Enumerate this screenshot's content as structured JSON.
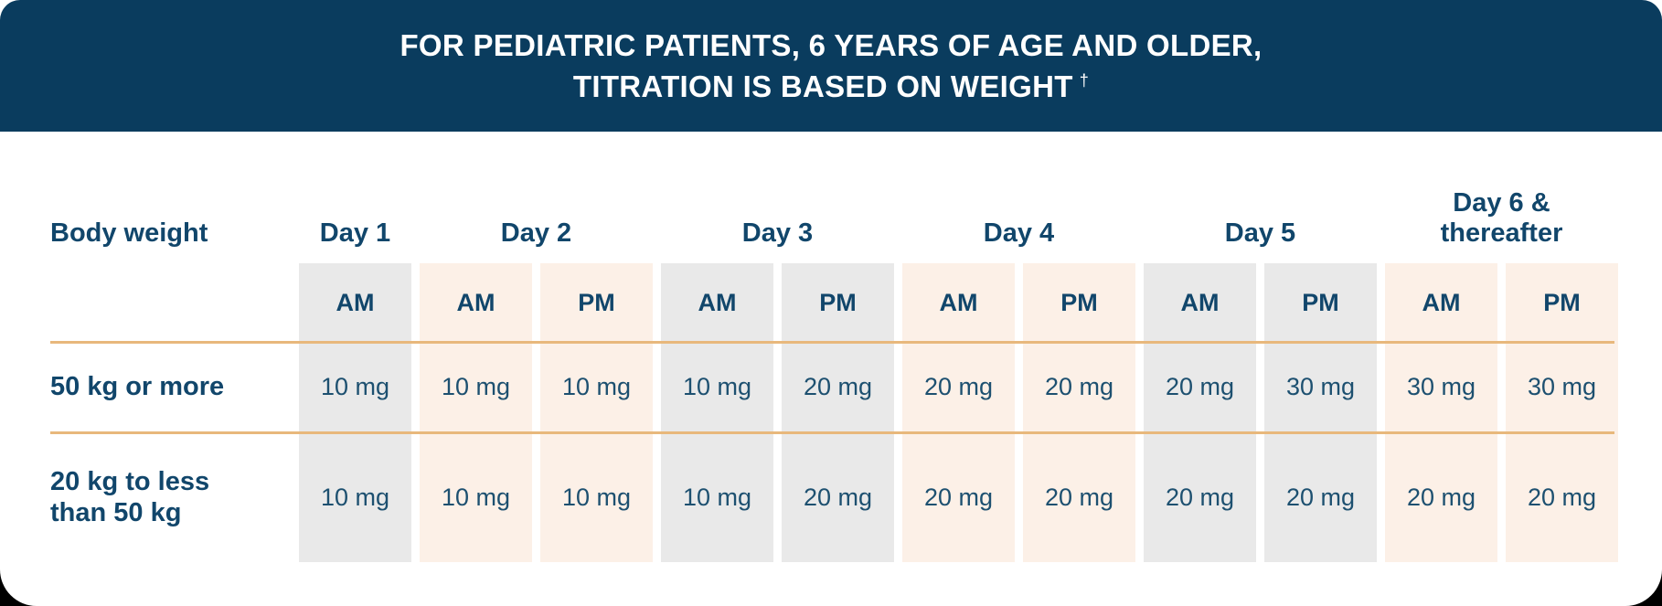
{
  "banner": {
    "title_line1": "FOR PEDIATRIC PATIENTS, 6 YEARS OF AGE AND OLDER,",
    "title_line2": "TITRATION IS BASED ON WEIGHT",
    "dagger_symbol": "†"
  },
  "table": {
    "corner_label": "Body weight",
    "day_headers": [
      {
        "label": "Day 1",
        "span": 1
      },
      {
        "label": "Day 2",
        "span": 2
      },
      {
        "label": "Day 3",
        "span": 2
      },
      {
        "label": "Day 4",
        "span": 2
      },
      {
        "label": "Day 5",
        "span": 2
      },
      {
        "label": "Day 6 &\nthereafter",
        "span": 2
      }
    ],
    "period_headers": [
      "AM",
      "AM",
      "PM",
      "AM",
      "PM",
      "AM",
      "PM",
      "AM",
      "PM",
      "AM",
      "PM"
    ],
    "column_pattern": [
      "gray",
      "peach",
      "peach",
      "gray",
      "gray",
      "peach",
      "peach",
      "gray",
      "gray",
      "peach",
      "peach"
    ],
    "rows": [
      {
        "label": "50 kg or more",
        "values": [
          "10 mg",
          "10 mg",
          "10 mg",
          "10 mg",
          "20 mg",
          "20 mg",
          "20 mg",
          "20 mg",
          "30 mg",
          "30 mg",
          "30 mg"
        ]
      },
      {
        "label": "20 kg to less\nthan 50 kg",
        "values": [
          "10 mg",
          "10 mg",
          "10 mg",
          "10 mg",
          "20 mg",
          "20 mg",
          "20 mg",
          "20 mg",
          "20 mg",
          "20 mg",
          "20 mg"
        ]
      }
    ]
  },
  "chart_data": {
    "type": "table",
    "title": "FOR PEDIATRIC PATIENTS, 6 YEARS OF AGE AND OLDER, TITRATION IS BASED ON WEIGHT †",
    "columns": [
      "Body weight",
      "Day 1 AM",
      "Day 2 AM",
      "Day 2 PM",
      "Day 3 AM",
      "Day 3 PM",
      "Day 4 AM",
      "Day 4 PM",
      "Day 5 AM",
      "Day 5 PM",
      "Day 6 & thereafter AM",
      "Day 6 & thereafter PM"
    ],
    "rows": [
      [
        "50 kg or more",
        "10 mg",
        "10 mg",
        "10 mg",
        "10 mg",
        "20 mg",
        "20 mg",
        "20 mg",
        "20 mg",
        "30 mg",
        "30 mg",
        "30 mg"
      ],
      [
        "20 kg to less than 50 kg",
        "10 mg",
        "10 mg",
        "10 mg",
        "10 mg",
        "20 mg",
        "20 mg",
        "20 mg",
        "20 mg",
        "20 mg",
        "20 mg",
        "20 mg"
      ]
    ]
  },
  "colors": {
    "banner_bg": "#0a3c5e",
    "banner_text": "#ffffff",
    "heading_text": "#11466b",
    "value_text": "#1d5070",
    "column_gray": "#e9e9e9",
    "column_peach": "#fcf0e7",
    "divider_orange": "#e8b87c",
    "page_backdrop": "#000000"
  }
}
